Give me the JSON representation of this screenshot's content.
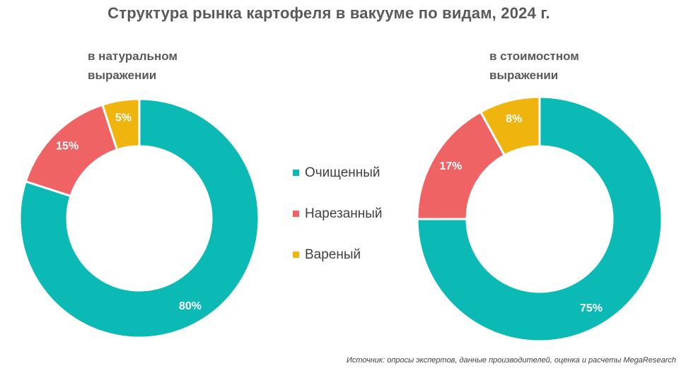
{
  "title": "Структура рынка картофеля в вакууме по видам, 2024 г.",
  "source": "Источник: опросы экспертов, данные производителей, оценка и расчеты MegaResearch",
  "legend": [
    {
      "label": "Очищенный",
      "color": "#0BBAB4"
    },
    {
      "label": "Нарезанный",
      "color": "#F06365"
    },
    {
      "label": "Вареный",
      "color": "#F0B40F"
    }
  ],
  "chart_data": [
    {
      "type": "pie",
      "subtitle": "в натуральном\nвыражении",
      "categories": [
        "Очищенный",
        "Нарезанный",
        "Вареный"
      ],
      "values": [
        80,
        15,
        5
      ],
      "labels": [
        "80%",
        "15%",
        "5%"
      ],
      "colors": [
        "#0BBAB4",
        "#F06365",
        "#F0B40F"
      ],
      "legend_position": "center"
    },
    {
      "type": "pie",
      "subtitle": "в стоимостном\nвыражении",
      "categories": [
        "Очищенный",
        "Нарезанный",
        "Вареный"
      ],
      "values": [
        75,
        17,
        8
      ],
      "labels": [
        "75%",
        "17%",
        "8%"
      ],
      "colors": [
        "#0BBAB4",
        "#F06365",
        "#F0B40F"
      ],
      "legend_position": "center"
    }
  ]
}
